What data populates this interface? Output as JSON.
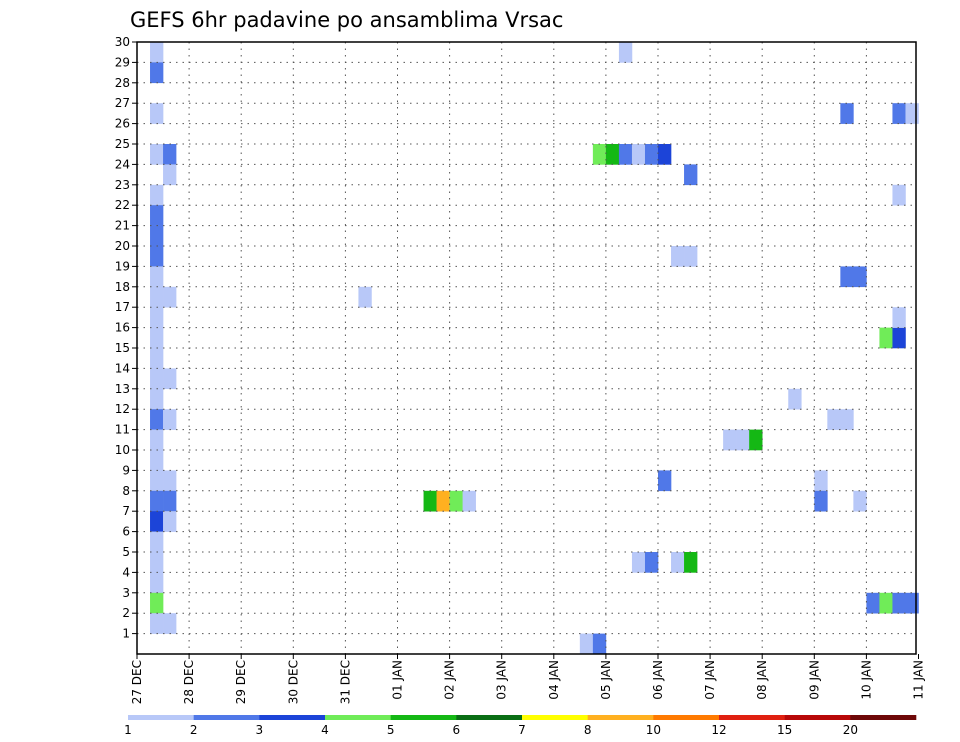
{
  "chart_data": {
    "type": "heatmap",
    "title": "GEFS 6hr padavine po ansamblima Vrsac",
    "x_start": "27 DEC",
    "x_tick_labels": [
      "27 DEC",
      "28 DEC",
      "29 DEC",
      "30 DEC",
      "31 DEC",
      "01 JAN",
      "02 JAN",
      "03 JAN",
      "04 JAN",
      "05 JAN",
      "06 JAN",
      "07 JAN",
      "08 JAN",
      "09 JAN",
      "10 JAN",
      "11 JAN"
    ],
    "y_range": [
      0,
      30
    ],
    "y_ticks": [
      1,
      2,
      3,
      4,
      5,
      6,
      7,
      8,
      9,
      10,
      11,
      12,
      13,
      14,
      15,
      16,
      17,
      18,
      19,
      20,
      21,
      22,
      23,
      24,
      25,
      26,
      27,
      28,
      29,
      30
    ],
    "grid": true,
    "colorbar": {
      "placement": "bottom",
      "labels": [
        "1",
        "2",
        "3",
        "4",
        "5",
        "6",
        "7",
        "8",
        "10",
        "12",
        "15",
        "20"
      ],
      "colors": [
        "#b8c8f8",
        "#5078e8",
        "#1c44d8",
        "#70ec58",
        "#14b814",
        "#0a6e14",
        "#ffff00",
        "#ffb020",
        "#ff7a00",
        "#e02010",
        "#b80808",
        "#6e0808"
      ]
    },
    "cells": [
      {
        "t": 0.25,
        "m": 29,
        "v": 1
      },
      {
        "t": 0.25,
        "m": 28,
        "v": 2
      },
      {
        "t": 0.25,
        "m": 26,
        "v": 1
      },
      {
        "t": 0.25,
        "m": 24,
        "v": 1
      },
      {
        "t": 0.5,
        "m": 24,
        "v": 2
      },
      {
        "t": 0.5,
        "m": 23,
        "v": 1
      },
      {
        "t": 0.25,
        "m": 22,
        "v": 1
      },
      {
        "t": 0.25,
        "m": 21,
        "v": 2
      },
      {
        "t": 0.25,
        "m": 20,
        "v": 2
      },
      {
        "t": 0.25,
        "m": 19,
        "v": 2
      },
      {
        "t": 0.25,
        "m": 18,
        "v": 1
      },
      {
        "t": 0.25,
        "m": 17,
        "v": 1
      },
      {
        "t": 0.5,
        "m": 17,
        "v": 1
      },
      {
        "t": 0.25,
        "m": 16,
        "v": 1
      },
      {
        "t": 0.25,
        "m": 15,
        "v": 1
      },
      {
        "t": 0.25,
        "m": 14,
        "v": 1
      },
      {
        "t": 0.25,
        "m": 13,
        "v": 1
      },
      {
        "t": 0.5,
        "m": 13,
        "v": 1
      },
      {
        "t": 0.25,
        "m": 12,
        "v": 1
      },
      {
        "t": 0.25,
        "m": 11,
        "v": 2
      },
      {
        "t": 0.5,
        "m": 11,
        "v": 1
      },
      {
        "t": 0.25,
        "m": 10,
        "v": 1
      },
      {
        "t": 0.25,
        "m": 9,
        "v": 1
      },
      {
        "t": 0.25,
        "m": 8,
        "v": 1
      },
      {
        "t": 0.5,
        "m": 8,
        "v": 1
      },
      {
        "t": 0.25,
        "m": 7,
        "v": 2
      },
      {
        "t": 0.5,
        "m": 7,
        "v": 2
      },
      {
        "t": 0.25,
        "m": 6,
        "v": 3
      },
      {
        "t": 0.5,
        "m": 6,
        "v": 1
      },
      {
        "t": 0.25,
        "m": 5,
        "v": 1
      },
      {
        "t": 0.25,
        "m": 4,
        "v": 1
      },
      {
        "t": 0.25,
        "m": 3,
        "v": 1
      },
      {
        "t": 0.25,
        "m": 2,
        "v": 4
      },
      {
        "t": 0.25,
        "m": 1,
        "v": 1
      },
      {
        "t": 0.5,
        "m": 1,
        "v": 1
      },
      {
        "t": 4.25,
        "m": 17,
        "v": 1
      },
      {
        "t": 5.5,
        "m": 7,
        "v": 5
      },
      {
        "t": 5.75,
        "m": 7,
        "v": 8
      },
      {
        "t": 6.0,
        "m": 7,
        "v": 4
      },
      {
        "t": 6.25,
        "m": 7,
        "v": 1
      },
      {
        "t": 8.5,
        "m": 0,
        "v": 1
      },
      {
        "t": 8.75,
        "m": 0,
        "v": 2
      },
      {
        "t": 9.25,
        "m": 29,
        "v": 1
      },
      {
        "t": 8.75,
        "m": 24,
        "v": 4
      },
      {
        "t": 9.0,
        "m": 24,
        "v": 5
      },
      {
        "t": 9.25,
        "m": 24,
        "v": 2
      },
      {
        "t": 9.5,
        "m": 24,
        "v": 1
      },
      {
        "t": 9.75,
        "m": 24,
        "v": 2
      },
      {
        "t": 10.0,
        "m": 24,
        "v": 3
      },
      {
        "t": 9.5,
        "m": 4,
        "v": 1
      },
      {
        "t": 9.75,
        "m": 4,
        "v": 2
      },
      {
        "t": 10.0,
        "m": 8,
        "v": 2
      },
      {
        "t": 10.5,
        "m": 23,
        "v": 2
      },
      {
        "t": 10.25,
        "m": 19,
        "v": 1
      },
      {
        "t": 10.5,
        "m": 19,
        "v": 1
      },
      {
        "t": 10.25,
        "m": 4,
        "v": 1
      },
      {
        "t": 10.5,
        "m": 4,
        "v": 5
      },
      {
        "t": 11.25,
        "m": 10,
        "v": 1
      },
      {
        "t": 11.5,
        "m": 10,
        "v": 1
      },
      {
        "t": 11.75,
        "m": 10,
        "v": 5
      },
      {
        "t": 12.5,
        "m": 12,
        "v": 1
      },
      {
        "t": 13.0,
        "m": 8,
        "v": 1
      },
      {
        "t": 13.0,
        "m": 7,
        "v": 2
      },
      {
        "t": 13.25,
        "m": 11,
        "v": 1
      },
      {
        "t": 13.5,
        "m": 11,
        "v": 1
      },
      {
        "t": 13.75,
        "m": 7,
        "v": 1
      },
      {
        "t": 13.5,
        "m": 26,
        "v": 2
      },
      {
        "t": 13.5,
        "m": 18,
        "v": 2
      },
      {
        "t": 13.75,
        "m": 18,
        "v": 2
      },
      {
        "t": 14.0,
        "m": 2,
        "v": 2
      },
      {
        "t": 14.25,
        "m": 2,
        "v": 4
      },
      {
        "t": 14.5,
        "m": 2,
        "v": 2
      },
      {
        "t": 14.75,
        "m": 2,
        "v": 2
      },
      {
        "t": 14.25,
        "m": 15,
        "v": 4
      },
      {
        "t": 14.5,
        "m": 15,
        "v": 3
      },
      {
        "t": 14.5,
        "m": 16,
        "v": 1
      },
      {
        "t": 14.5,
        "m": 22,
        "v": 1
      },
      {
        "t": 14.5,
        "m": 26,
        "v": 2
      },
      {
        "t": 14.75,
        "m": 26,
        "v": 1
      }
    ]
  }
}
